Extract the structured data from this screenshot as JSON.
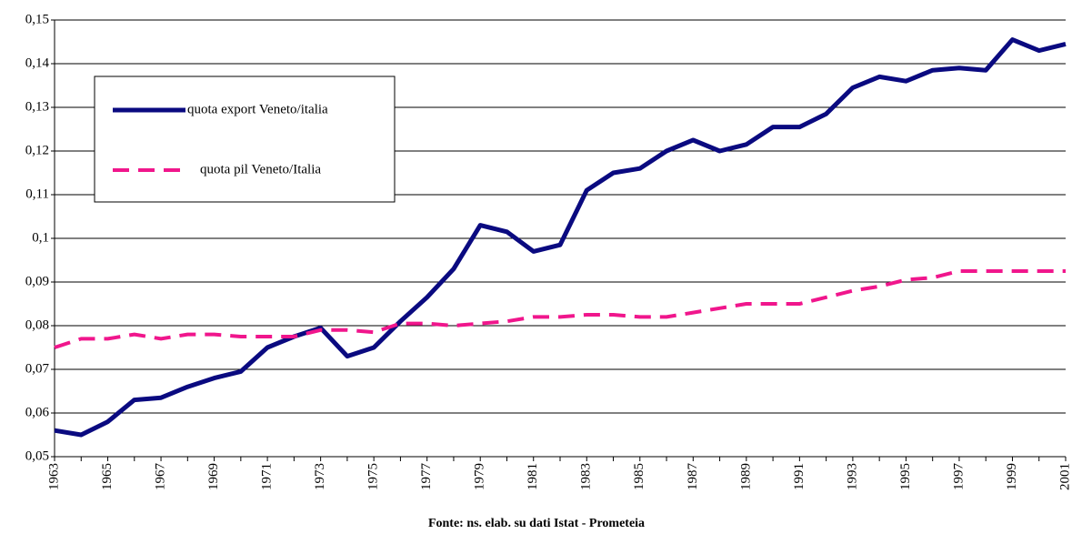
{
  "chart_data": {
    "type": "line",
    "xlabel": "Fonte: ns. elab. su dati Istat - Prometeia",
    "categories": [
      "1963",
      null,
      "1965",
      null,
      "1967",
      null,
      "1969",
      null,
      "1971",
      null,
      "1973",
      null,
      "1975",
      null,
      "1977",
      null,
      "1979",
      null,
      "1981",
      null,
      "1983",
      null,
      "1985",
      null,
      "1987",
      null,
      "1989",
      null,
      "1991",
      null,
      "1993",
      null,
      "1995",
      null,
      "1997",
      null,
      "1999",
      null,
      "2001"
    ],
    "series": [
      {
        "name": "quota export Veneto/italia",
        "color": "#0a0a80",
        "style": "solid",
        "values": [
          0.056,
          0.055,
          0.058,
          0.063,
          0.0635,
          0.066,
          0.068,
          0.0695,
          0.075,
          0.0775,
          0.0795,
          0.073,
          0.075,
          0.081,
          0.0865,
          0.093,
          0.103,
          0.1015,
          0.097,
          0.0985,
          0.111,
          0.115,
          0.116,
          0.12,
          0.1225,
          0.12,
          0.1215,
          0.1255,
          0.1255,
          0.1285,
          0.1345,
          0.137,
          0.136,
          0.1385,
          0.139,
          0.1385,
          0.1455,
          0.143,
          0.1445
        ]
      },
      {
        "name": "quota pil Veneto/Italia",
        "color": "#f0168c",
        "style": "dashed",
        "values": [
          0.075,
          0.077,
          0.077,
          0.078,
          0.077,
          0.078,
          0.078,
          0.0775,
          0.0775,
          0.0775,
          0.079,
          0.079,
          0.0785,
          0.0805,
          0.0805,
          0.08,
          0.0805,
          0.081,
          0.082,
          0.082,
          0.0825,
          0.0825,
          0.082,
          0.082,
          0.083,
          0.084,
          0.085,
          0.085,
          0.085,
          0.0865,
          0.088,
          0.089,
          0.0905,
          0.091,
          0.0925,
          0.0925,
          0.0925,
          0.0925,
          0.0925
        ]
      }
    ],
    "ylim": [
      0.05,
      0.15
    ],
    "yticks": [
      {
        "value": 0.05,
        "label": "0,05"
      },
      {
        "value": 0.06,
        "label": "0,06"
      },
      {
        "value": 0.07,
        "label": "0,07"
      },
      {
        "value": 0.08,
        "label": "0,08"
      },
      {
        "value": 0.09,
        "label": "0,09"
      },
      {
        "value": 0.1,
        "label": "0,1"
      },
      {
        "value": 0.11,
        "label": "0,11"
      },
      {
        "value": 0.12,
        "label": "0,12"
      },
      {
        "value": 0.13,
        "label": "0,13"
      },
      {
        "value": 0.14,
        "label": "0,14"
      },
      {
        "value": 0.15,
        "label": "0,15"
      }
    ],
    "grid": true,
    "legend": "upper left"
  }
}
